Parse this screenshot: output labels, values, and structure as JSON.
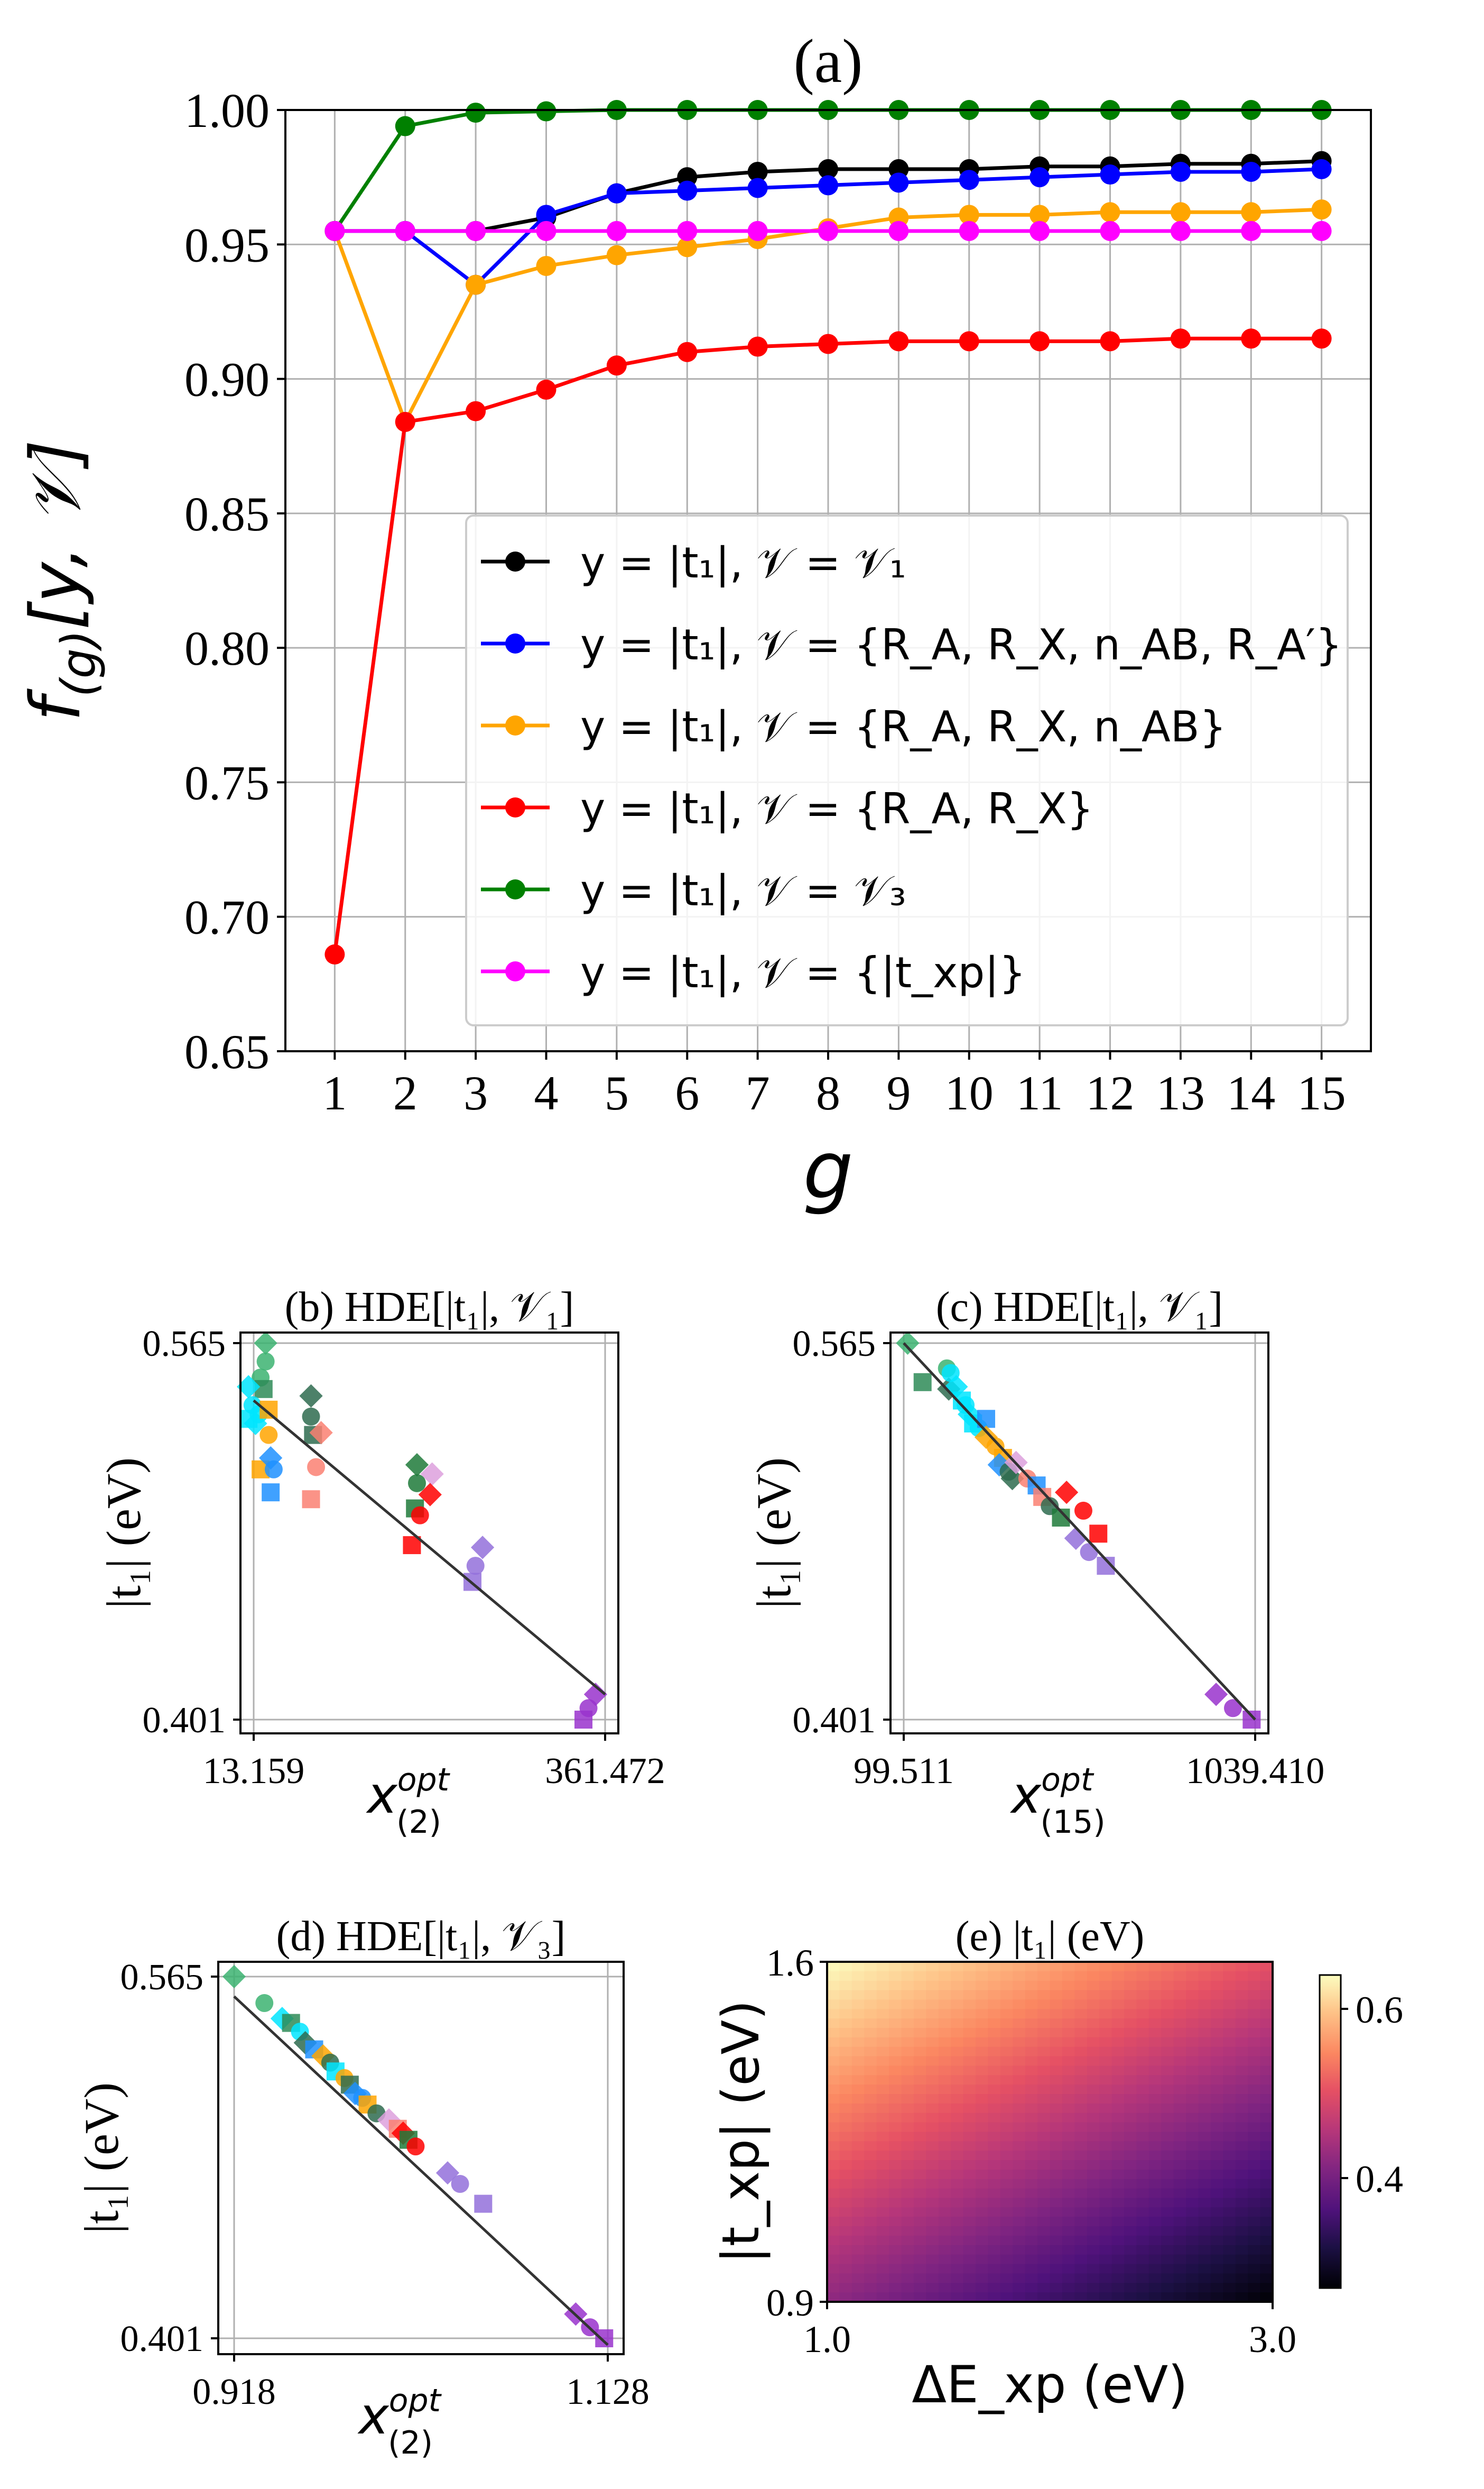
{
  "chart_data": [
    {
      "panel": "(a)",
      "type": "line",
      "title": "(a)",
      "xlabel": "g",
      "ylabel": "f_(g)[y, V]",
      "ylim": [
        0.65,
        1.0
      ],
      "xlim": [
        0.3,
        15.7
      ],
      "x": [
        1,
        2,
        3,
        4,
        5,
        6,
        7,
        8,
        9,
        10,
        11,
        12,
        13,
        14,
        15
      ],
      "x_ticks": [
        "1",
        "2",
        "3",
        "4",
        "5",
        "6",
        "7",
        "8",
        "9",
        "10",
        "11",
        "12",
        "13",
        "14",
        "15"
      ],
      "y_ticks": [
        "0.65",
        "0.70",
        "0.75",
        "0.80",
        "0.85",
        "0.90",
        "0.95",
        "1.00"
      ],
      "grid": true,
      "legend_position": "center-right",
      "series": [
        {
          "name": "y = |t1|, V = V1",
          "legend_label": "y = |t₁|, 𝒱 = 𝒱₁",
          "color": "#000000",
          "values": [
            0.955,
            0.955,
            0.955,
            0.96,
            0.969,
            0.975,
            0.977,
            0.978,
            0.978,
            0.978,
            0.979,
            0.979,
            0.98,
            0.98,
            0.981
          ]
        },
        {
          "name": "y = |t1|, V = {R_A, R_X, n_AB, R_A'}",
          "legend_label": "y = |t₁|, 𝒱 = {R_A, R_X, n_AB, R_A′}",
          "color": "#0000ff",
          "values": [
            0.955,
            0.955,
            0.935,
            0.961,
            0.969,
            0.97,
            0.971,
            0.972,
            0.973,
            0.974,
            0.975,
            0.976,
            0.977,
            0.977,
            0.978
          ]
        },
        {
          "name": "y = |t1|, V = {R_A, R_X, n_AB}",
          "legend_label": "y = |t₁|, 𝒱 = {R_A, R_X, n_AB}",
          "color": "#ffa500",
          "values": [
            0.955,
            0.884,
            0.935,
            0.942,
            0.946,
            0.949,
            0.952,
            0.956,
            0.96,
            0.961,
            0.961,
            0.962,
            0.962,
            0.962,
            0.963
          ]
        },
        {
          "name": "y = |t1|, V = {R_A, R_X}",
          "legend_label": "y = |t₁|, 𝒱 = {R_A, R_X}",
          "color": "#ff0000",
          "values": [
            0.686,
            0.884,
            0.888,
            0.896,
            0.905,
            0.91,
            0.912,
            0.913,
            0.914,
            0.914,
            0.914,
            0.914,
            0.915,
            0.915,
            0.915
          ]
        },
        {
          "name": "y = |t1|, V = V3",
          "legend_label": "y = |t₁|, 𝒱 = 𝒱₃",
          "color": "#008000",
          "values": [
            0.955,
            0.994,
            0.999,
            0.9995,
            1.0,
            1.0,
            1.0,
            1.0,
            1.0,
            1.0,
            1.0,
            1.0,
            1.0,
            1.0,
            1.0
          ]
        },
        {
          "name": "y = |t1|, V = {|t_xp|}",
          "legend_label": "y = |t₁|, 𝒱 = {|t_xp|}",
          "color": "#ff00ff",
          "values": [
            0.955,
            0.955,
            0.955,
            0.955,
            0.955,
            0.955,
            0.955,
            0.955,
            0.955,
            0.955,
            0.955,
            0.955,
            0.955,
            0.955,
            0.955
          ]
        }
      ]
    },
    {
      "panel": "(b)",
      "type": "scatter",
      "title": "(b)  HDE[|t₁|, 𝒱₁]",
      "xlabel": "x^opt_(2)",
      "ylabel": "|t₁| (eV)",
      "x_ticks": [
        "13.159",
        "361.472"
      ],
      "y_ticks": [
        "0.401",
        "0.565"
      ],
      "xlim": [
        13.159,
        361.472
      ],
      "ylim": [
        0.401,
        0.565
      ],
      "fit_line": [
        [
          13.159,
          0.54
        ],
        [
          361.472,
          0.412
        ]
      ],
      "points": [
        {
          "x": 25,
          "y": 0.565,
          "marker": "D",
          "color": "#3cb371"
        },
        {
          "x": 25,
          "y": 0.557,
          "marker": "o",
          "color": "#3cb371"
        },
        {
          "x": 20,
          "y": 0.55,
          "marker": "o",
          "color": "#3cb371"
        },
        {
          "x": 23,
          "y": 0.545,
          "marker": "s",
          "color": "#2e8b57"
        },
        {
          "x": 8,
          "y": 0.546,
          "marker": "D",
          "color": "#00e5ff"
        },
        {
          "x": 12,
          "y": 0.538,
          "marker": "o",
          "color": "#00e5ff"
        },
        {
          "x": 8,
          "y": 0.532,
          "marker": "s",
          "color": "#00e5ff"
        },
        {
          "x": 15,
          "y": 0.53,
          "marker": "D",
          "color": "#00e5ff"
        },
        {
          "x": 18,
          "y": 0.534,
          "marker": "o",
          "color": "#00e5ff"
        },
        {
          "x": 28,
          "y": 0.536,
          "marker": "s",
          "color": "#ffa500"
        },
        {
          "x": 28,
          "y": 0.525,
          "marker": "o",
          "color": "#ffa500"
        },
        {
          "x": 20,
          "y": 0.51,
          "marker": "s",
          "color": "#ffa500"
        },
        {
          "x": 30,
          "y": 0.515,
          "marker": "D",
          "color": "#1e90ff"
        },
        {
          "x": 33,
          "y": 0.51,
          "marker": "o",
          "color": "#1e90ff"
        },
        {
          "x": 30,
          "y": 0.5,
          "marker": "s",
          "color": "#1e90ff"
        },
        {
          "x": 70,
          "y": 0.542,
          "marker": "D",
          "color": "#2e6b4f"
        },
        {
          "x": 70,
          "y": 0.533,
          "marker": "o",
          "color": "#2e6b4f"
        },
        {
          "x": 72,
          "y": 0.525,
          "marker": "s",
          "color": "#2e6b4f"
        },
        {
          "x": 80,
          "y": 0.526,
          "marker": "D",
          "color": "#fa8072"
        },
        {
          "x": 75,
          "y": 0.511,
          "marker": "o",
          "color": "#fa8072"
        },
        {
          "x": 70,
          "y": 0.497,
          "marker": "s",
          "color": "#fa8072"
        },
        {
          "x": 175,
          "y": 0.512,
          "marker": "D",
          "color": "#1f7a3a"
        },
        {
          "x": 175,
          "y": 0.504,
          "marker": "o",
          "color": "#1f7a3a"
        },
        {
          "x": 173,
          "y": 0.493,
          "marker": "s",
          "color": "#1f7a3a"
        },
        {
          "x": 190,
          "y": 0.508,
          "marker": "D",
          "color": "#dda0dd"
        },
        {
          "x": 188,
          "y": 0.499,
          "marker": "D",
          "color": "#ff0000"
        },
        {
          "x": 178,
          "y": 0.49,
          "marker": "o",
          "color": "#ff0000"
        },
        {
          "x": 170,
          "y": 0.477,
          "marker": "s",
          "color": "#ff0000"
        },
        {
          "x": 240,
          "y": 0.476,
          "marker": "D",
          "color": "#9370db"
        },
        {
          "x": 233,
          "y": 0.468,
          "marker": "o",
          "color": "#9370db"
        },
        {
          "x": 230,
          "y": 0.461,
          "marker": "s",
          "color": "#9370db"
        },
        {
          "x": 352,
          "y": 0.412,
          "marker": "D",
          "color": "#9932cc"
        },
        {
          "x": 345,
          "y": 0.406,
          "marker": "o",
          "color": "#9932cc"
        },
        {
          "x": 340,
          "y": 0.401,
          "marker": "s",
          "color": "#9932cc"
        }
      ]
    },
    {
      "panel": "(c)",
      "type": "scatter",
      "title": "(c)  HDE[|t₁|, 𝒱₁]",
      "xlabel": "x^opt_(15)",
      "ylabel": "|t₁| (eV)",
      "x_ticks": [
        "99.511",
        "1039.410"
      ],
      "y_ticks": [
        "0.401",
        "0.565"
      ],
      "xlim": [
        99.511,
        1039.41
      ],
      "ylim": [
        0.401,
        0.565
      ],
      "fit_line": [
        [
          99.511,
          0.565
        ],
        [
          1039.41,
          0.401
        ]
      ],
      "points": [
        {
          "x": 110,
          "y": 0.565,
          "marker": "D",
          "color": "#3cb371"
        },
        {
          "x": 215,
          "y": 0.554,
          "marker": "o",
          "color": "#3cb371"
        },
        {
          "x": 150,
          "y": 0.548,
          "marker": "s",
          "color": "#2e8b57"
        },
        {
          "x": 220,
          "y": 0.545,
          "marker": "D",
          "color": "#2e6b4f"
        },
        {
          "x": 225,
          "y": 0.552,
          "marker": "o",
          "color": "#00e5ff"
        },
        {
          "x": 240,
          "y": 0.546,
          "marker": "D",
          "color": "#00e5ff"
        },
        {
          "x": 255,
          "y": 0.54,
          "marker": "s",
          "color": "#00e5ff"
        },
        {
          "x": 265,
          "y": 0.538,
          "marker": "o",
          "color": "#00e5ff"
        },
        {
          "x": 275,
          "y": 0.534,
          "marker": "D",
          "color": "#00e5ff"
        },
        {
          "x": 285,
          "y": 0.53,
          "marker": "s",
          "color": "#00e5ff"
        },
        {
          "x": 300,
          "y": 0.528,
          "marker": "o",
          "color": "#00e5ff"
        },
        {
          "x": 320,
          "y": 0.532,
          "marker": "s",
          "color": "#1e90ff"
        },
        {
          "x": 320,
          "y": 0.524,
          "marker": "D",
          "color": "#ffa500"
        },
        {
          "x": 345,
          "y": 0.52,
          "marker": "o",
          "color": "#ffa500"
        },
        {
          "x": 365,
          "y": 0.515,
          "marker": "s",
          "color": "#ffa500"
        },
        {
          "x": 355,
          "y": 0.512,
          "marker": "D",
          "color": "#1e90ff"
        },
        {
          "x": 380,
          "y": 0.509,
          "marker": "o",
          "color": "#2e6b4f"
        },
        {
          "x": 390,
          "y": 0.506,
          "marker": "D",
          "color": "#2e6b4f"
        },
        {
          "x": 400,
          "y": 0.513,
          "marker": "D",
          "color": "#dda0dd"
        },
        {
          "x": 430,
          "y": 0.506,
          "marker": "o",
          "color": "#fa8072"
        },
        {
          "x": 455,
          "y": 0.503,
          "marker": "s",
          "color": "#1e90ff"
        },
        {
          "x": 470,
          "y": 0.498,
          "marker": "s",
          "color": "#fa8072"
        },
        {
          "x": 490,
          "y": 0.494,
          "marker": "o",
          "color": "#2e6b4f"
        },
        {
          "x": 520,
          "y": 0.489,
          "marker": "s",
          "color": "#1f7a3a"
        },
        {
          "x": 535,
          "y": 0.5,
          "marker": "D",
          "color": "#ff0000"
        },
        {
          "x": 580,
          "y": 0.492,
          "marker": "o",
          "color": "#ff0000"
        },
        {
          "x": 620,
          "y": 0.482,
          "marker": "s",
          "color": "#ff0000"
        },
        {
          "x": 560,
          "y": 0.48,
          "marker": "D",
          "color": "#9370db"
        },
        {
          "x": 595,
          "y": 0.474,
          "marker": "o",
          "color": "#9370db"
        },
        {
          "x": 640,
          "y": 0.468,
          "marker": "s",
          "color": "#9370db"
        },
        {
          "x": 935,
          "y": 0.412,
          "marker": "D",
          "color": "#9932cc"
        },
        {
          "x": 980,
          "y": 0.406,
          "marker": "o",
          "color": "#9932cc"
        },
        {
          "x": 1030,
          "y": 0.401,
          "marker": "s",
          "color": "#9932cc"
        }
      ]
    },
    {
      "panel": "(d)",
      "type": "scatter",
      "title": "(d)  HDE[|t₁|, 𝒱₃]",
      "xlabel": "x^opt_(2)",
      "ylabel": "|t₁| (eV)",
      "x_ticks": [
        "0.918",
        "1.128"
      ],
      "y_ticks": [
        "0.401",
        "0.565"
      ],
      "xlim": [
        0.918,
        1.128
      ],
      "ylim": [
        0.401,
        0.565
      ],
      "fit_line": [
        [
          0.918,
          0.556
        ],
        [
          1.128,
          0.398
        ]
      ],
      "points": [
        {
          "x": 0.918,
          "y": 0.565,
          "marker": "D",
          "color": "#3cb371"
        },
        {
          "x": 0.935,
          "y": 0.553,
          "marker": "o",
          "color": "#3cb371"
        },
        {
          "x": 0.945,
          "y": 0.546,
          "marker": "D",
          "color": "#00e5ff"
        },
        {
          "x": 0.95,
          "y": 0.544,
          "marker": "s",
          "color": "#2e8b57"
        },
        {
          "x": 0.955,
          "y": 0.54,
          "marker": "o",
          "color": "#00e5ff"
        },
        {
          "x": 0.958,
          "y": 0.535,
          "marker": "D",
          "color": "#2e6b4f"
        },
        {
          "x": 0.963,
          "y": 0.532,
          "marker": "s",
          "color": "#1e90ff"
        },
        {
          "x": 0.968,
          "y": 0.529,
          "marker": "D",
          "color": "#ffa500"
        },
        {
          "x": 0.972,
          "y": 0.526,
          "marker": "o",
          "color": "#2e6b4f"
        },
        {
          "x": 0.975,
          "y": 0.522,
          "marker": "s",
          "color": "#00e5ff"
        },
        {
          "x": 0.98,
          "y": 0.519,
          "marker": "o",
          "color": "#ffa500"
        },
        {
          "x": 0.983,
          "y": 0.516,
          "marker": "s",
          "color": "#2e6b4f"
        },
        {
          "x": 0.986,
          "y": 0.512,
          "marker": "D",
          "color": "#1e90ff"
        },
        {
          "x": 0.99,
          "y": 0.51,
          "marker": "o",
          "color": "#1e90ff"
        },
        {
          "x": 0.993,
          "y": 0.507,
          "marker": "s",
          "color": "#ffa500"
        },
        {
          "x": 0.998,
          "y": 0.503,
          "marker": "o",
          "color": "#2e6b4f"
        },
        {
          "x": 1.005,
          "y": 0.5,
          "marker": "D",
          "color": "#dda0dd"
        },
        {
          "x": 1.01,
          "y": 0.496,
          "marker": "s",
          "color": "#fa8072"
        },
        {
          "x": 1.013,
          "y": 0.494,
          "marker": "D",
          "color": "#ff0000"
        },
        {
          "x": 1.016,
          "y": 0.491,
          "marker": "s",
          "color": "#1f7a3a"
        },
        {
          "x": 1.02,
          "y": 0.488,
          "marker": "o",
          "color": "#ff0000"
        },
        {
          "x": 1.038,
          "y": 0.476,
          "marker": "D",
          "color": "#9370db"
        },
        {
          "x": 1.045,
          "y": 0.471,
          "marker": "o",
          "color": "#9370db"
        },
        {
          "x": 1.058,
          "y": 0.462,
          "marker": "s",
          "color": "#9370db"
        },
        {
          "x": 1.11,
          "y": 0.412,
          "marker": "D",
          "color": "#9932cc"
        },
        {
          "x": 1.118,
          "y": 0.406,
          "marker": "o",
          "color": "#9932cc"
        },
        {
          "x": 1.126,
          "y": 0.401,
          "marker": "s",
          "color": "#9932cc"
        }
      ]
    },
    {
      "panel": "(e)",
      "type": "heatmap",
      "title": "(e)  |t₁| (eV)",
      "xlabel": "ΔE_xp (eV)",
      "ylabel": "|t_xp| (eV)",
      "x_ticks": [
        "1.0",
        "3.0"
      ],
      "y_ticks": [
        "0.9",
        "1.6"
      ],
      "xlim": [
        1.0,
        3.0
      ],
      "ylim": [
        0.9,
        1.6
      ],
      "colormap": "magma",
      "colorbar_ticks": [
        "0.6",
        "0.4"
      ],
      "colorbar_range": [
        0.27,
        0.64
      ],
      "corner_values": {
        "top_left": 0.64,
        "top_right": 0.5,
        "bottom_left": 0.42,
        "bottom_right": 0.27
      }
    }
  ]
}
